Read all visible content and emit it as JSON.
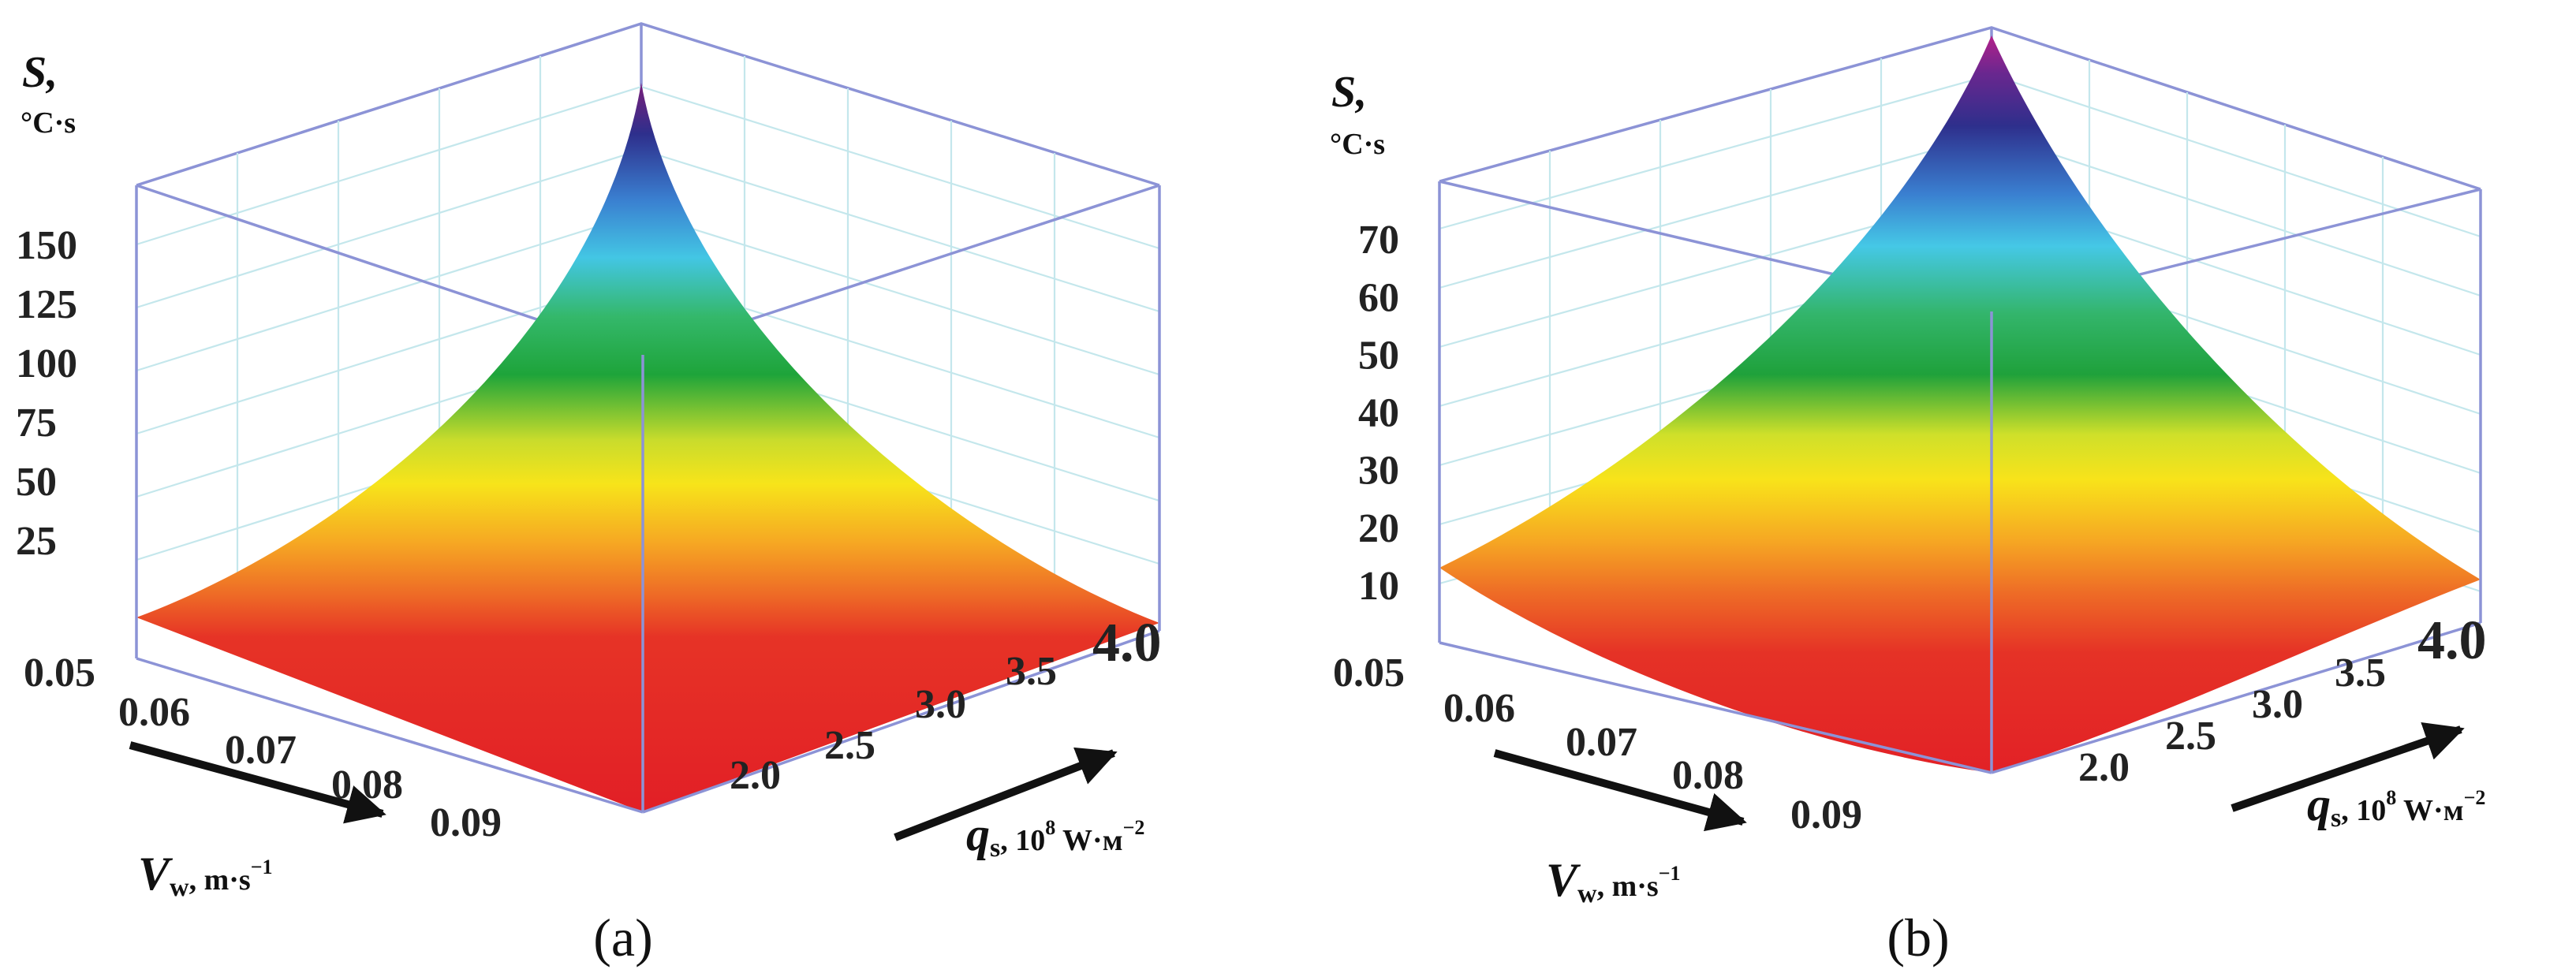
{
  "chart_data": [
    {
      "type": "surface3d",
      "panel_label": "(a)",
      "zlabel": "S,",
      "zunit": "°C·s",
      "zticks": [
        "150",
        "125",
        "100",
        "75",
        "50",
        "25"
      ],
      "zlim": [
        0,
        175
      ],
      "vw_label": "V",
      "vw_sub": "w",
      "vw_unit": ", m·s",
      "vw_exp": "−1",
      "vw_ticks": [
        "0.05",
        "0.06",
        "0.07",
        "0.08",
        "0.09"
      ],
      "qs_label": "q",
      "qs_sub": "s",
      "qs_unit": ", 10",
      "qs_exp1": "8",
      "qs_unit2": " W·м",
      "qs_exp2": "−2",
      "qs_ticks": [
        "2.0",
        "2.5",
        "3.0",
        "3.5",
        "4.0"
      ],
      "surface": {
        "corner_min_vw": 0.05,
        "corner_min_qs": 4.0,
        "values_vw_edge": [
          12,
          20,
          40,
          80,
          150
        ],
        "values_qs_edge": [
          12,
          20,
          40,
          80,
          150
        ],
        "peak": 150,
        "min": 3
      }
    },
    {
      "type": "surface3d",
      "panel_label": "(b)",
      "zlabel": "S,",
      "zunit": "°C·s",
      "zticks": [
        "70",
        "60",
        "50",
        "40",
        "30",
        "20",
        "10"
      ],
      "zlim": [
        0,
        80
      ],
      "vw_label": "V",
      "vw_sub": "w",
      "vw_unit": ", m·s",
      "vw_exp": "−1",
      "vw_ticks": [
        "0.05",
        "0.06",
        "0.07",
        "0.08",
        "0.09"
      ],
      "qs_label": "q",
      "qs_sub": "s",
      "qs_unit": ", 10",
      "qs_exp1": "8",
      "qs_unit2": " W·м",
      "qs_exp2": "−2",
      "qs_ticks": [
        "2.0",
        "2.5",
        "3.0",
        "3.5",
        "4.0"
      ],
      "surface": {
        "peak": 80,
        "corner_vw_end": 13,
        "corner_qs_end": 9,
        "min": 3
      }
    }
  ]
}
